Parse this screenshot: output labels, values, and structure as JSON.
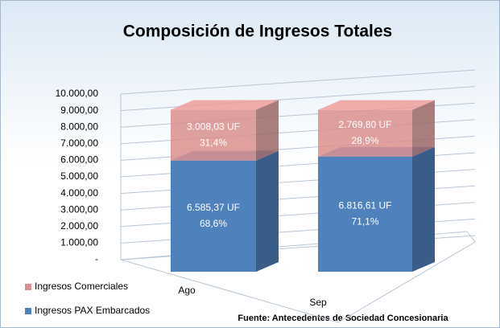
{
  "chart_data": {
    "type": "bar3d_stacked",
    "title": "Composición de Ingresos Totales",
    "categories": [
      "Ago",
      "Sep"
    ],
    "series": [
      {
        "name": "Ingresos PAX Embarcados",
        "color": "#4f81bd",
        "values": [
          6585.37,
          6816.61
        ],
        "value_labels": [
          "6.585,37 UF",
          "6.816,61 UF"
        ],
        "percent_labels": [
          "68,6%",
          "71,1%"
        ]
      },
      {
        "name": "Ingresos Comerciales",
        "color": "#d98f8d",
        "values": [
          3008.03,
          2769.8
        ],
        "value_labels": [
          "3.008,03 UF",
          "2.769,80 UF"
        ],
        "percent_labels": [
          "31,4%",
          "28,9%"
        ]
      }
    ],
    "ylim": [
      0,
      10000
    ],
    "yticks": [
      {
        "value": 0,
        "label": "-"
      },
      {
        "value": 1000,
        "label": "1.000,00"
      },
      {
        "value": 2000,
        "label": "2.000,00"
      },
      {
        "value": 3000,
        "label": "3.000,00"
      },
      {
        "value": 4000,
        "label": "4.000,00"
      },
      {
        "value": 5000,
        "label": "5.000,00"
      },
      {
        "value": 6000,
        "label": "6.000,00"
      },
      {
        "value": 7000,
        "label": "7.000,00"
      },
      {
        "value": 8000,
        "label": "8.000,00"
      },
      {
        "value": 9000,
        "label": "9.000,00"
      },
      {
        "value": 10000,
        "label": "10.000,00"
      }
    ],
    "grid": true,
    "source": "Fuente: Antecedentes de Sociedad Concesionaria"
  }
}
